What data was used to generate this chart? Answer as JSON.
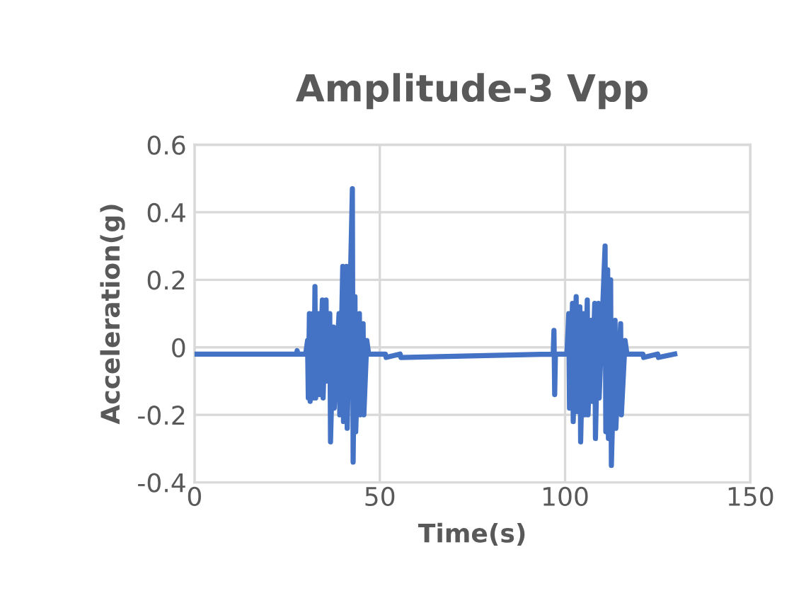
{
  "chart_data": {
    "type": "line",
    "title": "Amplitude-3 Vpp",
    "xlabel": "Time(s)",
    "ylabel": "Acceleration(g)",
    "series": [
      {
        "color": "#4472c4",
        "x": [
          0,
          27.5,
          27.7,
          27.9,
          30,
          30.5,
          30.7,
          31,
          31.2,
          32,
          32.2,
          32.5,
          32.7,
          33.5,
          33.7,
          34.5,
          34.7,
          35.5,
          35.7,
          36.5,
          36.7,
          37.5,
          37.7,
          39,
          39.2,
          40,
          40.2,
          41,
          41.2,
          42.6,
          42.8,
          43.3,
          43.5,
          44.5,
          44.7,
          45.5,
          45.7,
          46.5,
          47,
          51.5,
          51.7,
          55.5,
          55.7,
          96.8,
          97,
          97.2,
          97.4,
          100.5,
          101,
          101.2,
          102,
          102.2,
          103,
          103.2,
          104,
          104.2,
          105,
          105.2,
          106,
          106.2,
          107,
          107.2,
          108,
          108.2,
          109,
          109.2,
          110.8,
          111,
          111.5,
          111.7,
          112.3,
          112.5,
          113.5,
          113.7,
          115,
          115.2,
          116.2,
          116.7,
          121,
          121.2,
          125,
          125.2,
          129.6
        ],
        "values": [
          -0.02,
          -0.02,
          -0.01,
          -0.02,
          -0.02,
          0.02,
          -0.15,
          0.1,
          -0.16,
          0.1,
          -0.15,
          0.18,
          -0.15,
          0.1,
          -0.14,
          0.14,
          -0.15,
          0.14,
          -0.1,
          0.1,
          -0.28,
          0.06,
          -0.18,
          0.1,
          -0.2,
          0.24,
          -0.22,
          0.24,
          -0.24,
          0.47,
          -0.34,
          0.15,
          -0.25,
          0.1,
          -0.2,
          0.07,
          -0.2,
          0.02,
          -0.02,
          -0.02,
          -0.03,
          -0.02,
          -0.03,
          -0.02,
          0.05,
          -0.14,
          -0.02,
          -0.02,
          0.1,
          -0.18,
          0.13,
          -0.22,
          0.15,
          -0.19,
          0.12,
          -0.28,
          0.1,
          -0.2,
          0.14,
          -0.2,
          0.08,
          -0.16,
          0.13,
          -0.27,
          0.13,
          -0.15,
          0.3,
          -0.25,
          0.23,
          -0.27,
          0.2,
          -0.35,
          0.08,
          -0.24,
          0.07,
          -0.2,
          0.02,
          -0.02,
          -0.02,
          -0.03,
          -0.02,
          -0.03,
          -0.02
        ]
      }
    ],
    "xlim": [
      0,
      150
    ],
    "xticks": [
      0,
      50,
      100,
      150
    ],
    "ylim": [
      -0.4,
      0.6
    ],
    "yticks": [
      -0.4,
      -0.2,
      0,
      0.2,
      0.4,
      0.6
    ],
    "grid": true,
    "marker": "none",
    "line_style": "solid"
  }
}
